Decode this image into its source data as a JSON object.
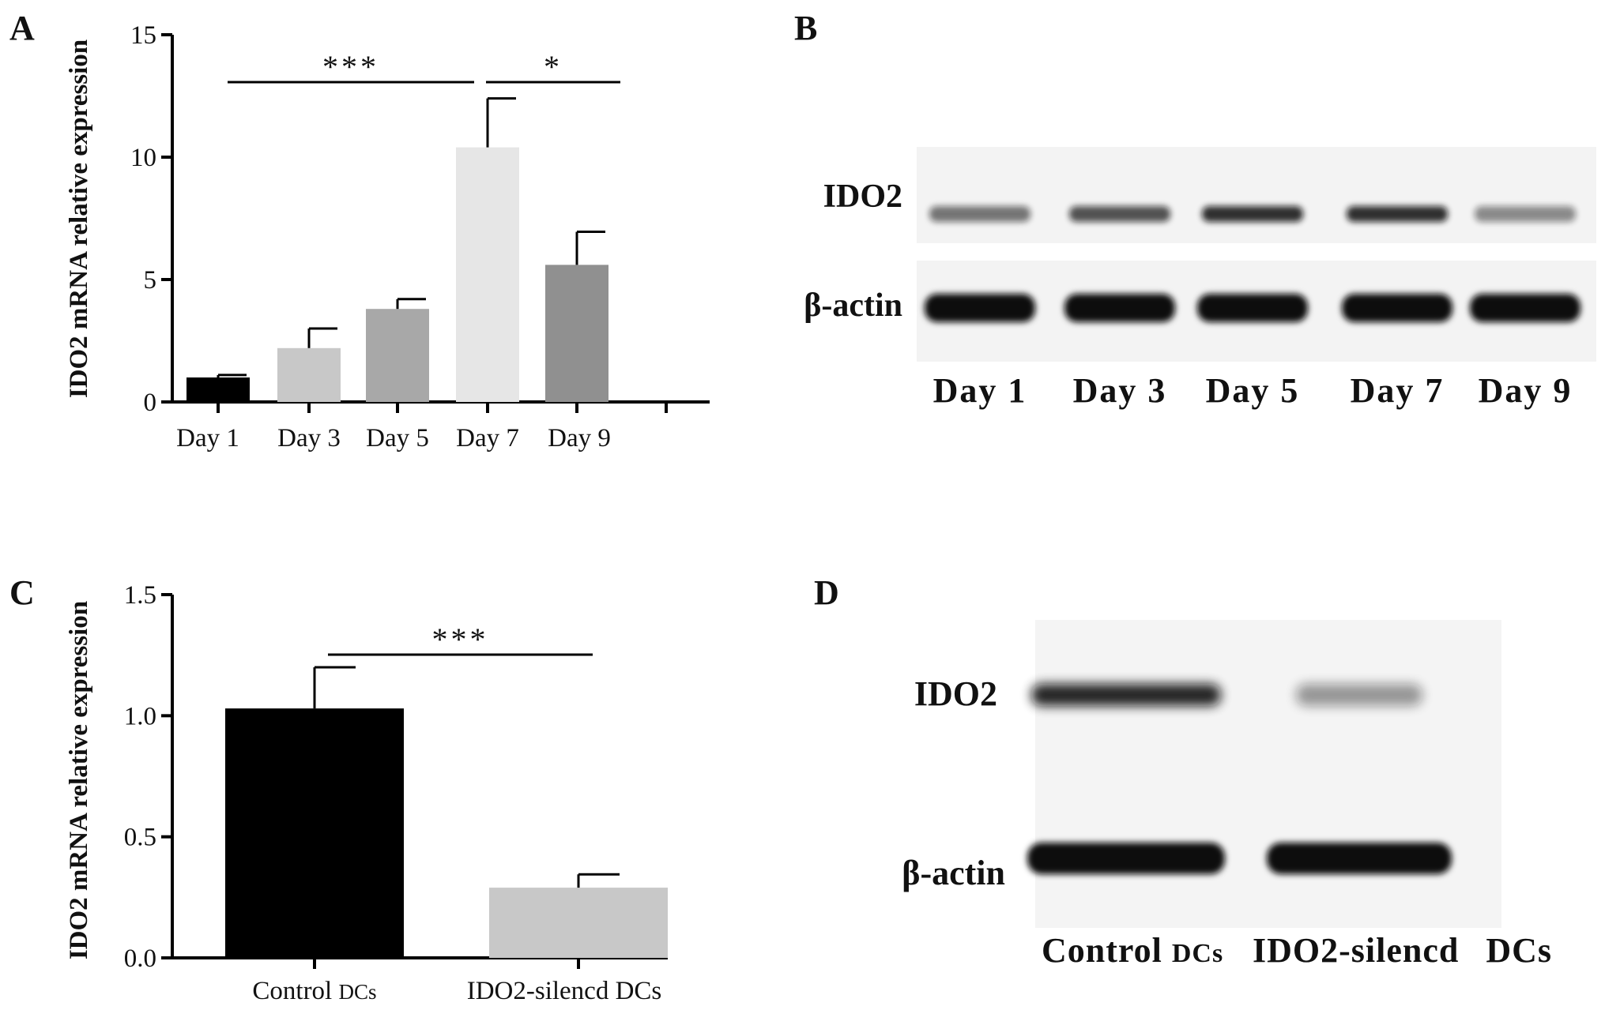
{
  "panels": {
    "A": "A",
    "B": "B",
    "C": "C",
    "D": "D"
  },
  "chart_data": [
    {
      "panel": "A",
      "type": "bar",
      "ylabel": "IDO2 mRNA relative expression",
      "xlabel": "",
      "ylim": [
        0,
        15
      ],
      "yticks": [
        "0",
        "5",
        "10",
        "15"
      ],
      "categories": [
        "Day 1",
        "Day 3",
        "Day 5",
        "Day 7",
        "Day 9"
      ],
      "values": [
        1.0,
        2.2,
        3.8,
        10.4,
        5.6
      ],
      "errors": [
        0.1,
        0.8,
        0.4,
        2.0,
        1.35
      ],
      "colors": [
        "#000000",
        "#c8c8c8",
        "#a8a8a8",
        "#e6e6e6",
        "#909090"
      ],
      "significance": [
        {
          "from": "Day 1",
          "to": "Day 7",
          "label": "***"
        },
        {
          "from": "Day 7",
          "to": "Day 9",
          "label": "*"
        }
      ]
    },
    {
      "panel": "C",
      "type": "bar",
      "ylabel": "IDO2 mRNA relative expression",
      "xlabel": "",
      "ylim": [
        0,
        1.5
      ],
      "yticks": [
        "0.0",
        "0.5",
        "1.0",
        "1.5"
      ],
      "categories": [
        "Control DCs",
        "IDO2-silencd  DCs"
      ],
      "category_parts": [
        [
          "Control ",
          "DCs"
        ],
        [
          "IDO2-silencd  DCs",
          ""
        ]
      ],
      "values": [
        1.03,
        0.29
      ],
      "errors": [
        0.17,
        0.055
      ],
      "colors": [
        "#000000",
        "#c8c8c8"
      ],
      "significance": [
        {
          "from": "Control DCs",
          "to": "IDO2-silencd  DCs",
          "label": "***"
        }
      ]
    }
  ],
  "blot_B": {
    "rows": [
      "IDO2",
      "β-actin"
    ],
    "lanes": [
      "Day 1",
      "Day 3",
      "Day 5",
      "Day 7",
      "Day 9"
    ],
    "ido2_band_intensity": [
      0.55,
      0.7,
      0.85,
      0.85,
      0.45
    ],
    "actin_band_intensity": [
      1.0,
      1.0,
      1.0,
      1.0,
      1.0
    ]
  },
  "blot_D": {
    "rows": [
      "IDO2",
      "β-actin"
    ],
    "lanes": [
      "Control DCs",
      "IDO2-silencd  DCs"
    ],
    "lane_label_parts": [
      [
        "Control ",
        "DCs"
      ],
      [
        "IDO2-silencd",
        "DCs"
      ]
    ],
    "ido2_band_intensity": [
      0.9,
      0.4
    ],
    "actin_band_intensity": [
      1.0,
      1.0
    ]
  }
}
